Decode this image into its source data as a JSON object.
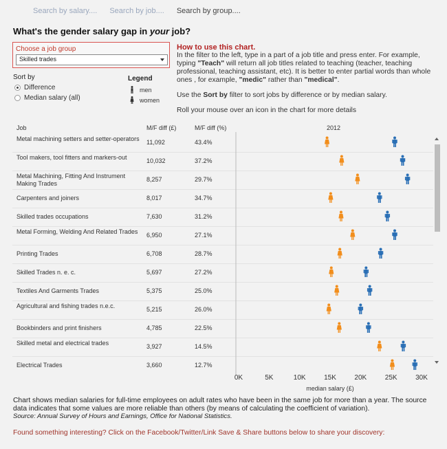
{
  "tabs": [
    {
      "label": "Search by salary....",
      "active": false
    },
    {
      "label": "Search by job....",
      "active": false
    },
    {
      "label": "Search by group....",
      "active": true
    }
  ],
  "title_prefix": "What's the gender salary gap in ",
  "title_em": "your",
  "title_suffix": " job?",
  "filter": {
    "label": "Choose  a job group",
    "value": "Skilled trades"
  },
  "sort": {
    "title": "Sort by",
    "options": [
      {
        "label": "Difference",
        "selected": true
      },
      {
        "label": "Median salary (all)",
        "selected": false
      }
    ]
  },
  "legend": {
    "title": "Legend",
    "men": "men",
    "women": "women"
  },
  "howto": {
    "heading": "How to use this chart.",
    "p1_a": "In the filter to the left, type in a part of a job title and press enter. For example, typing ",
    "p1_b": "\"Teach\"",
    "p1_c": " will return all job titles related to teaching (teacher, teaching professional, teaching assistant, etc). It is better to enter partial words than whole ones , for example, ",
    "p1_d": "\"medic\"",
    "p1_e": " rather than ",
    "p1_f": "\"medical\"",
    "p1_g": ".",
    "p2_a": "Use the ",
    "p2_b": "Sort by",
    "p2_c": " filter to sort jobs by difference or by median salary.",
    "p3": "Roll your mouse over an icon in the chart for more details"
  },
  "columns": {
    "job": "Job",
    "diff_gbp": "M/F diff (£)",
    "diff_pct": "M/F diff (%)",
    "year": "2012"
  },
  "colors": {
    "men": "#2a6fb5",
    "women": "#f28e1c",
    "accent": "#b22222"
  },
  "chart_data": {
    "type": "scatter",
    "year": "2012",
    "xlabel": "median salary (£)",
    "xlim": [
      0,
      31000
    ],
    "x_ticks": [
      "0K",
      "5K",
      "10K",
      "15K",
      "20K",
      "25K",
      "30K"
    ],
    "rows": [
      {
        "job": "Metal machining setters and setter-operators",
        "diff_gbp": "11,092",
        "diff_pct": "43.4%",
        "women": 14500,
        "men": 25600
      },
      {
        "job": "Tool makers, tool fitters and markers-out",
        "diff_gbp": "10,032",
        "diff_pct": "37.2%",
        "women": 16900,
        "men": 26900
      },
      {
        "job": "Metal Machining, Fitting And Instrument Making Trades",
        "diff_gbp": "8,257",
        "diff_pct": "29.7%",
        "women": 19500,
        "men": 27700
      },
      {
        "job": "Carpenters and joiners",
        "diff_gbp": "8,017",
        "diff_pct": "34.7%",
        "women": 15100,
        "men": 23100
      },
      {
        "job": "Skilled trades occupations",
        "diff_gbp": "7,630",
        "diff_pct": "31.2%",
        "women": 16800,
        "men": 24400
      },
      {
        "job": "Metal Forming, Welding And Related Trades",
        "diff_gbp": "6,950",
        "diff_pct": "27.1%",
        "women": 18700,
        "men": 25600
      },
      {
        "job": "Printing Trades",
        "diff_gbp": "6,708",
        "diff_pct": "28.7%",
        "women": 16600,
        "men": 23300
      },
      {
        "job": "Skilled Trades n. e. c.",
        "diff_gbp": "5,697",
        "diff_pct": "27.2%",
        "women": 15200,
        "men": 20900
      },
      {
        "job": "Textiles And Garments Trades",
        "diff_gbp": "5,375",
        "diff_pct": "25.0%",
        "women": 16100,
        "men": 21500
      },
      {
        "job": "Agricultural and fishing trades n.e.c.",
        "diff_gbp": "5,215",
        "diff_pct": "26.0%",
        "women": 14800,
        "men": 20000
      },
      {
        "job": "Bookbinders and print finishers",
        "diff_gbp": "4,785",
        "diff_pct": "22.5%",
        "women": 16500,
        "men": 21300
      },
      {
        "job": "Skilled metal and electrical trades",
        "diff_gbp": "3,927",
        "diff_pct": "14.5%",
        "women": 23100,
        "men": 27000
      },
      {
        "job": "Electrical Trades",
        "diff_gbp": "3,660",
        "diff_pct": "12.7%",
        "women": 25200,
        "men": 28900
      }
    ]
  },
  "footer": {
    "text": "Chart shows median salaries for full-time employees on adult rates who have been in the same job for more than a year. The source data indicates that some values are more reliable than others (by means of calculating the coefficient of variation).",
    "source": "Source: Annual Survey of Hours and Earnings, Office for National Statistics."
  },
  "share": "Found something interesting? Click on the Facebook/Twitter/Link Save & Share buttons below to share your discovery:"
}
